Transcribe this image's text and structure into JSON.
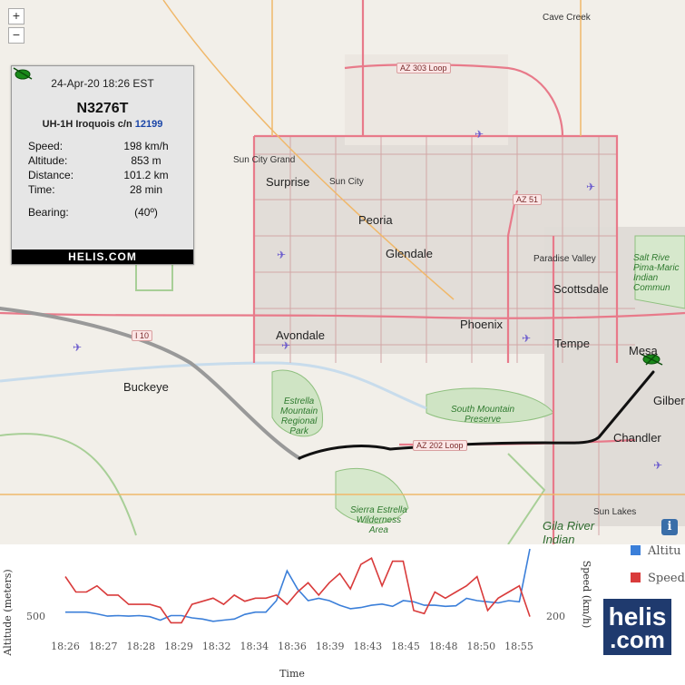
{
  "map": {
    "zoom_in": "+",
    "zoom_out": "−",
    "info_button": "i",
    "cities": [
      {
        "id": "cave-creek",
        "label": "Cave Creek"
      },
      {
        "id": "surprise",
        "label": "Surprise"
      },
      {
        "id": "sun-city-grand",
        "label": "Sun City Grand"
      },
      {
        "id": "sun-city",
        "label": "Sun City"
      },
      {
        "id": "peoria",
        "label": "Peoria"
      },
      {
        "id": "glendale",
        "label": "Glendale"
      },
      {
        "id": "paradise-valley",
        "label": "Paradise Valley"
      },
      {
        "id": "scottsdale",
        "label": "Scottsdale"
      },
      {
        "id": "phoenix",
        "label": "Phoenix"
      },
      {
        "id": "tempe",
        "label": "Tempe"
      },
      {
        "id": "mesa",
        "label": "Mesa"
      },
      {
        "id": "gilbert",
        "label": "Gilber"
      },
      {
        "id": "chandler",
        "label": "Chandler"
      },
      {
        "id": "avondale",
        "label": "Avondale"
      },
      {
        "id": "buckeye",
        "label": "Buckeye"
      },
      {
        "id": "sun-lakes",
        "label": "Sun Lakes"
      }
    ],
    "parks": [
      {
        "id": "estrella",
        "label": "Estrella\nMountain\nRegional\nPark"
      },
      {
        "id": "south-mountain",
        "label": "South Mountain\nPreserve"
      },
      {
        "id": "sierra-estrella",
        "label": "Sierra Estrella\nWilderness\nArea"
      },
      {
        "id": "salt-river",
        "label": "Salt Rive\nPima-Maric\nIndian\nCommun"
      },
      {
        "id": "gila-river",
        "label": "Gila River\nIndian"
      }
    ],
    "roads": [
      {
        "id": "az303",
        "label": "AZ 303 Loop"
      },
      {
        "id": "az51",
        "label": "AZ 51"
      },
      {
        "id": "i10",
        "label": "I 10"
      },
      {
        "id": "az202",
        "label": "AZ 202 Loop"
      }
    ],
    "colors": {
      "track": "#111111",
      "track_old": "#999999",
      "aircraft": "#1a8a1a",
      "road": "#e87a8a",
      "highway": "#f0b86a"
    }
  },
  "info": {
    "datetime": "24-Apr-20 18:26 EST",
    "registration": "N3276T",
    "type_prefix": "UH-1H Iroquois c/n ",
    "cn": "12199",
    "speed_label": "Speed:",
    "speed": "198 km/h",
    "altitude_label": "Altitude:",
    "altitude": "853 m",
    "distance_label": "Distance:",
    "distance": "101.2 km",
    "time_label": "Time:",
    "time": "28 min",
    "bearing_label": "Bearing:",
    "bearing": "(40º)",
    "bearing_icon": "helicopter-icon",
    "footer": "HELIS.COM"
  },
  "chart_data": {
    "type": "line",
    "xlabel": "Time",
    "ylabel_left": "Altitude (meters)",
    "ylabel_right": "Speed (km/h)",
    "x_ticks": [
      "18:26",
      "18:27",
      "18:28",
      "18:29",
      "18:32",
      "18:34",
      "18:36",
      "18:39",
      "18:43",
      "18:45",
      "18:48",
      "18:50",
      "18:55"
    ],
    "left_tick": {
      "label": "500",
      "value": 500
    },
    "right_tick": {
      "label": "200",
      "value": 200
    },
    "legend": [
      {
        "name": "Altitu",
        "color": "#3b7fd9"
      },
      {
        "name": "Speed",
        "color": "#d93b3b"
      }
    ],
    "series": [
      {
        "name": "Altitude",
        "color": "#3b7fd9",
        "values": [
          500,
          500,
          500,
          485,
          465,
          470,
          465,
          470,
          460,
          430,
          470,
          470,
          450,
          440,
          420,
          430,
          440,
          480,
          500,
          500,
          600,
          860,
          700,
          600,
          620,
          600,
          560,
          530,
          540,
          560,
          570,
          550,
          600,
          590,
          560,
          560,
          550,
          555,
          620,
          600,
          590,
          580,
          600,
          590,
          1050
        ]
      },
      {
        "name": "Speed",
        "color": "#d93b3b",
        "values": [
          330,
          280,
          280,
          300,
          270,
          270,
          240,
          240,
          240,
          230,
          180,
          180,
          240,
          250,
          260,
          240,
          270,
          250,
          260,
          260,
          270,
          240,
          280,
          310,
          270,
          310,
          340,
          290,
          370,
          390,
          300,
          380,
          380,
          220,
          210,
          280,
          260,
          280,
          300,
          330,
          220,
          260,
          280,
          300,
          200
        ]
      }
    ],
    "left_range": [
      300,
      1050
    ],
    "right_range": [
      140,
      420
    ]
  },
  "brand": {
    "line1": "helis",
    "line2": ".com"
  }
}
